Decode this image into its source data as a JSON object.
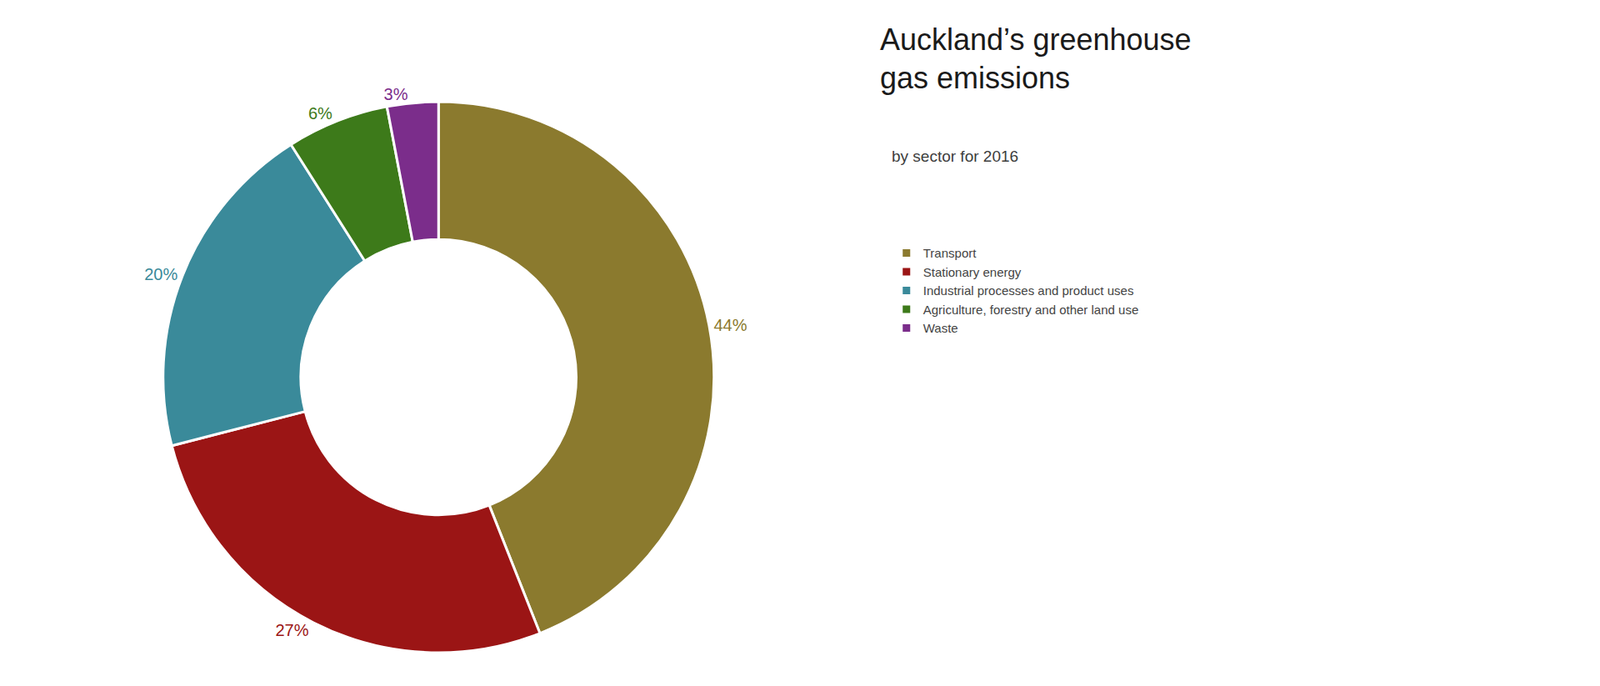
{
  "chart_data": {
    "type": "pie",
    "title": "Auckland’s greenhouse\ngas emissions",
    "subtitle": "by sector for 2016",
    "categories": [
      "Transport",
      "Stationary energy",
      "Industrial processes and product uses",
      "Agriculture, forestry and other land use",
      "Waste"
    ],
    "values": [
      44,
      27,
      20,
      6,
      3
    ],
    "value_labels": [
      "44%",
      "27%",
      "20%",
      "6%",
      "3%"
    ],
    "colors": [
      "#8B7A2E",
      "#9B1515",
      "#3A8A9A",
      "#3D7A1A",
      "#7B2D8B"
    ],
    "data_labels": true,
    "legend": "right"
  }
}
